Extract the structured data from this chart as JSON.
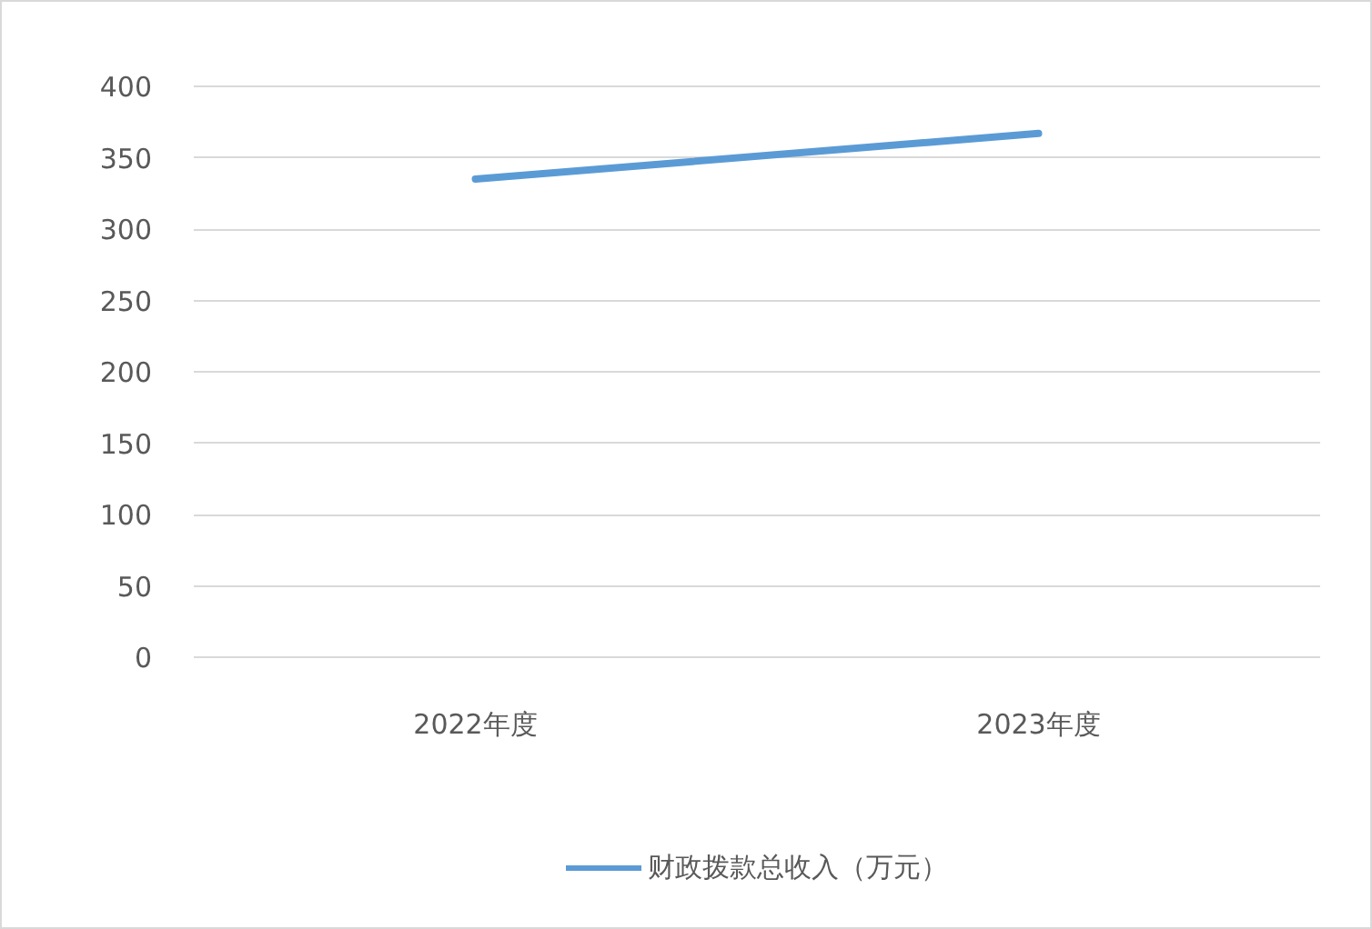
{
  "chart_data": {
    "type": "line",
    "categories": [
      "2022年度",
      "2023年度"
    ],
    "series": [
      {
        "name": "财政拨款总收入（万元）",
        "color": "#5b9bd5",
        "values": [
          335,
          367
        ]
      }
    ],
    "ylim": [
      0,
      400
    ],
    "yticks": [
      0,
      50,
      100,
      150,
      200,
      250,
      300,
      350,
      400
    ],
    "grid": "y",
    "legend": "bottom",
    "line_style": "solid"
  }
}
